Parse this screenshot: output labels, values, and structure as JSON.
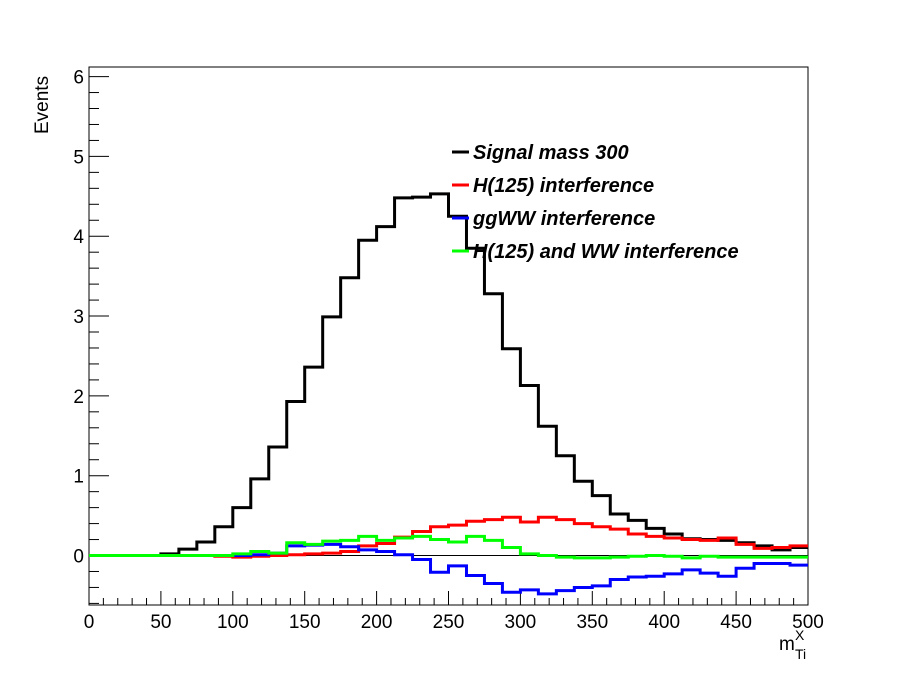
{
  "chart_data": {
    "type": "line",
    "style": "step-histogram",
    "xlabel": "m",
    "xlabel_sup": "X",
    "xlabel_sub": "Ti",
    "ylabel": "Events",
    "xlim": [
      0,
      500
    ],
    "ylim": [
      -0.62,
      6.12
    ],
    "x_ticks": [
      "0",
      "50",
      "100",
      "150",
      "200",
      "250",
      "300",
      "350",
      "400",
      "450",
      "500"
    ],
    "y_ticks": [
      "0",
      "1",
      "2",
      "3",
      "4",
      "5",
      "6"
    ],
    "grid": false,
    "legend_position": "top-right",
    "bin_width": 12.5,
    "bin_edges_start": 0,
    "series": [
      {
        "name": "Signal mass 300",
        "color": "#000000",
        "values": [
          0,
          0,
          0,
          0,
          0.02,
          0.08,
          0.17,
          0.36,
          0.6,
          0.96,
          1.36,
          1.93,
          2.36,
          2.99,
          3.48,
          3.95,
          4.12,
          4.48,
          4.49,
          4.53,
          4.25,
          3.85,
          3.28,
          2.59,
          2.13,
          1.62,
          1.25,
          0.93,
          0.75,
          0.52,
          0.44,
          0.34,
          0.27,
          0.21,
          0.2,
          0.19,
          0.16,
          0.12,
          0.07,
          0.1
        ]
      },
      {
        "name": "H(125) interference",
        "color": "#ff0000",
        "values": [
          0,
          0,
          0,
          0,
          0,
          0,
          0,
          -0.01,
          -0.02,
          -0.01,
          0,
          0.01,
          0.02,
          0.03,
          0.05,
          0.12,
          0.15,
          0.23,
          0.3,
          0.36,
          0.38,
          0.43,
          0.45,
          0.48,
          0.42,
          0.48,
          0.45,
          0.4,
          0.36,
          0.33,
          0.27,
          0.24,
          0.22,
          0.2,
          0.19,
          0.22,
          0.14,
          0.09,
          0.1,
          0.12
        ]
      },
      {
        "name": "ggWW interference",
        "color": "#0000ff",
        "values": [
          0,
          0,
          0,
          0,
          0,
          0,
          0,
          0,
          0,
          0.01,
          0.03,
          0.12,
          0.13,
          0.14,
          0.11,
          0.07,
          0.05,
          0.01,
          -0.05,
          -0.21,
          -0.13,
          -0.25,
          -0.35,
          -0.46,
          -0.43,
          -0.48,
          -0.44,
          -0.4,
          -0.38,
          -0.3,
          -0.27,
          -0.26,
          -0.23,
          -0.18,
          -0.22,
          -0.26,
          -0.16,
          -0.1,
          -0.1,
          -0.12
        ]
      },
      {
        "name": "H(125) and WW interference",
        "color": "#00ff00",
        "values": [
          0,
          0,
          0,
          0,
          0,
          0,
          0,
          0,
          0.02,
          0.05,
          0.03,
          0.16,
          0.14,
          0.18,
          0.19,
          0.24,
          0.19,
          0.22,
          0.24,
          0.2,
          0.17,
          0.24,
          0.19,
          0.1,
          0.02,
          0,
          -0.02,
          -0.03,
          -0.03,
          -0.02,
          -0.01,
          0,
          -0.01,
          -0.03,
          -0.01,
          -0.02,
          -0.02,
          -0.02,
          -0.02,
          -0.02
        ]
      }
    ]
  }
}
